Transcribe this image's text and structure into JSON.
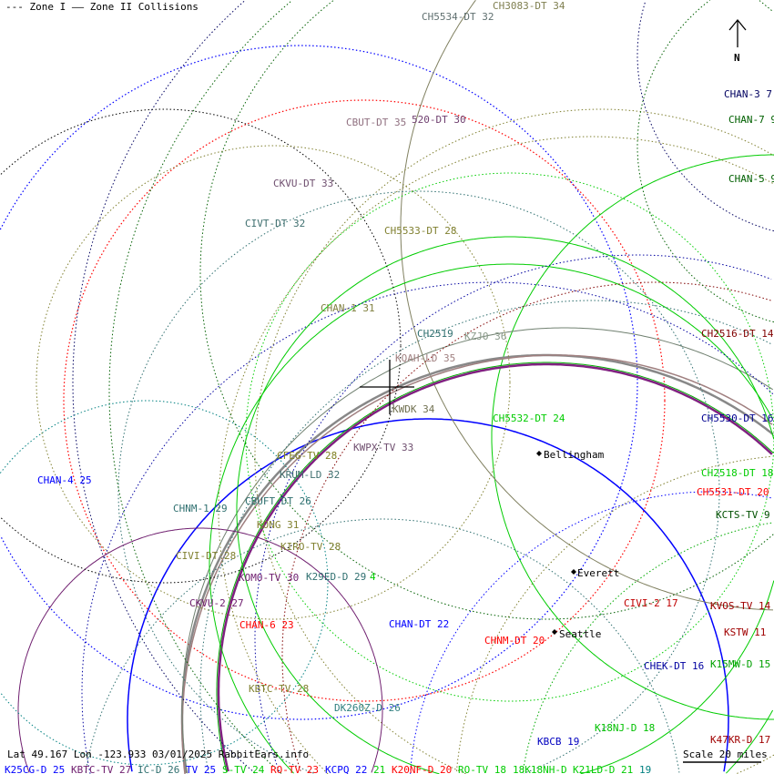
{
  "legend": {
    "zone1": "--- Zone I",
    "zone2": "—— Zone II Collisions"
  },
  "north_label": "N",
  "footer": {
    "coords": "Lat 49.167 Lon -123.933 03/01/2025 RabbitEars.info",
    "scale": "Scale 20 miles"
  },
  "cities": {
    "bellingham": "Bellingham",
    "everett": "Everett",
    "seattle": "Seattle"
  },
  "stations": {
    "ch3083": {
      "text": "CH3083-DT 34",
      "color": "#7f7f50"
    },
    "ch5534": {
      "text": "CH5534-DT 32",
      "color": "#607070"
    },
    "chan3": {
      "text": "CHAN-3 7",
      "color": "#000060"
    },
    "chan7": {
      "text": "CHAN-7 9",
      "color": "#006000"
    },
    "chan5": {
      "text": "CHAN-5 9",
      "color": "#006000"
    },
    "cbut": {
      "text": "CBUT-DT 35",
      "color": "#907080"
    },
    "c520": {
      "text": "520-DT 30",
      "color": "#704070"
    },
    "ckvu": {
      "text": "CKVU-DT 33",
      "color": "#705070"
    },
    "civt": {
      "text": "CIVT-DT 32",
      "color": "#407070"
    },
    "ch5533": {
      "text": "CH5533-DT 28",
      "color": "#808030"
    },
    "chan1": {
      "text": "CHAN-1 31",
      "color": "#808040"
    },
    "ch2516": {
      "text": "CH2516-DT 14",
      "color": "#800000"
    },
    "ch2519": {
      "text": "CH2519",
      "color": "#307070"
    },
    "kzjo": {
      "text": "KZJO 36",
      "color": "#8a9a8a"
    },
    "kqah": {
      "text": "KQAH-LD 35",
      "color": "#a08080"
    },
    "kwdk": {
      "text": "KWDK 34",
      "color": "#707050"
    },
    "ch5532": {
      "text": "CH5532-DT 24",
      "color": "#00cc00"
    },
    "ch5530": {
      "text": "CH5530-DT 16",
      "color": "#000090"
    },
    "kwpx": {
      "text": "KWPX-TV 33",
      "color": "#705070"
    },
    "cfeg": {
      "text": "CFEG-TV 28",
      "color": "#808020"
    },
    "krum": {
      "text": "KRUM-LD 32",
      "color": "#407070"
    },
    "chan4": {
      "text": "CHAN-4 25",
      "color": "#0000ff"
    },
    "ch2518": {
      "text": "CH2518-DT 18",
      "color": "#00cc00"
    },
    "ch5531": {
      "text": "CH5531-DT 20",
      "color": "#ff0000"
    },
    "chnm1": {
      "text": "CHNM-1 29",
      "color": "#307070"
    },
    "cbuft": {
      "text": "CBUFT-DT 26",
      "color": "#307070"
    },
    "kcts": {
      "text": "KCTS-TV 9",
      "color": "#005000"
    },
    "kong": {
      "text": "KONG 31",
      "color": "#808030"
    },
    "kiro": {
      "text": "KIRO-TV 28",
      "color": "#808030"
    },
    "civi": {
      "text": "CIVI-DT 28",
      "color": "#808030"
    },
    "komo": {
      "text": "KOMO-TV 30",
      "color": "#702070"
    },
    "k29ed": {
      "text": "K29ED-D 29",
      "color": "#307070"
    },
    "partial24": {
      "text": "4",
      "color": "#00cc00"
    },
    "ckvu2": {
      "text": "CKVU-2 27",
      "color": "#702070"
    },
    "civi2": {
      "text": "CIVI-2 17",
      "color": "#c00000"
    },
    "kvos": {
      "text": "KVOS-TV 14",
      "color": "#a00000"
    },
    "chan6": {
      "text": "CHAN-6 23",
      "color": "#ff0000"
    },
    "chandt": {
      "text": "CHAN-DT 22",
      "color": "#0000ff"
    },
    "kstw": {
      "text": "KSTW 11",
      "color": "#a00000"
    },
    "chnmdt": {
      "text": "CHNM-DT 20",
      "color": "#ff0000"
    },
    "chek": {
      "text": "CHEK-DT 16",
      "color": "#0000a0"
    },
    "k15mw": {
      "text": "K15MW-D 15",
      "color": "#00a000"
    },
    "kbtc28": {
      "text": "KBTC-TV 28",
      "color": "#808030"
    },
    "dk260z": {
      "text": "DK260Z-D 26",
      "color": "#308080"
    },
    "k18nj": {
      "text": "K18NJ-D 18",
      "color": "#00c000"
    },
    "kbcb": {
      "text": "KBCB 19",
      "color": "#0000c0"
    },
    "k47kr": {
      "text": "K47KR-D 17",
      "color": "#a00000"
    },
    "k25cg": {
      "text": "K25CG-D 25",
      "color": "#0000ff"
    },
    "kbtc27": {
      "text": "KBTC-TV 27",
      "color": "#702070"
    },
    "icd26": {
      "text": "IC-D 26",
      "color": "#307070"
    },
    "tv25": {
      "text": "TV 25",
      "color": "#0000ff"
    },
    "stv24": {
      "text": "S-TV 24",
      "color": "#00cc00"
    },
    "rotv23": {
      "text": "RO-TV 23",
      "color": "#ff0000"
    },
    "kcpq": {
      "text": "KCPQ 22",
      "color": "#0000ff"
    },
    "c21": {
      "text": "21",
      "color": "#00cc00"
    },
    "k20nf": {
      "text": "K20NF-D 20",
      "color": "#ff0000"
    },
    "rotv18": {
      "text": "RO-TV 18",
      "color": "#00cc00"
    },
    "k18nh": {
      "text": "18K18NH-D",
      "color": "#00cc00"
    },
    "k21ld": {
      "text": "K21LD-D 21",
      "color": "#00cc00"
    },
    "c19": {
      "text": "19",
      "color": "#008080"
    }
  }
}
